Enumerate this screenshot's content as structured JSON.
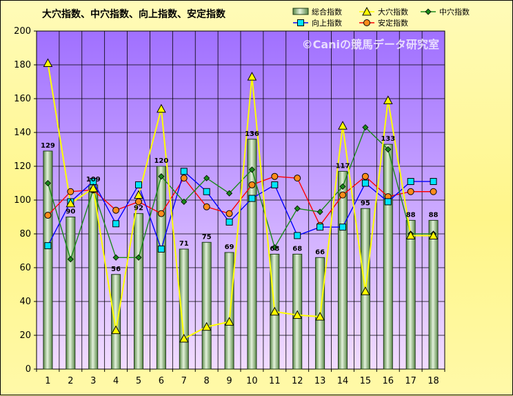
{
  "colors": {
    "plot_top": "#a070ff",
    "plot_bottom": "#f2dcff",
    "bar_fill_dark": "#5c8a4a",
    "bar_fill_light": "#e4f2dc",
    "daiana": "#ffff00",
    "chuana": "#1a8a1a",
    "kojo": "#0000ff",
    "antei": "#ff0000",
    "kojo_marker": "#00e5ff",
    "antei_marker": "#ff8c1a"
  },
  "watermark": "©Caniの競馬データ研究室",
  "chart_data": {
    "type": "bar",
    "title": "大穴指数、中穴指数、向上指数、安定指数",
    "categories": [
      "1",
      "2",
      "3",
      "4",
      "5",
      "6",
      "7",
      "8",
      "9",
      "10",
      "11",
      "12",
      "13",
      "14",
      "15",
      "16",
      "17",
      "18"
    ],
    "ylim": [
      0,
      200
    ],
    "yticks": [
      0,
      20,
      40,
      60,
      80,
      100,
      120,
      140,
      160,
      180,
      200
    ],
    "grid": true,
    "legend_position": "top-right",
    "series": [
      {
        "name": "総合指数",
        "kind": "bar",
        "values": [
          129,
          90,
          109,
          56,
          92,
          120,
          71,
          75,
          69,
          136,
          68,
          68,
          66,
          117,
          95,
          133,
          88,
          88
        ]
      },
      {
        "name": "大穴指数",
        "kind": "line",
        "marker": "triangle",
        "values": [
          181,
          98,
          107,
          23,
          103,
          154,
          18,
          25,
          28,
          173,
          34,
          32,
          31,
          144,
          46,
          159,
          79,
          79
        ]
      },
      {
        "name": "中穴指数",
        "kind": "line",
        "marker": "diamond",
        "values": [
          110,
          65,
          106,
          66,
          66,
          114,
          99,
          113,
          104,
          118,
          72,
          95,
          93,
          108,
          143,
          130,
          80,
          80
        ]
      },
      {
        "name": "向上指数",
        "kind": "line",
        "marker": "square",
        "values": [
          73,
          99,
          111,
          86,
          109,
          71,
          117,
          105,
          87,
          101,
          109,
          79,
          84,
          84,
          110,
          99,
          111,
          111
        ]
      },
      {
        "name": "安定指数",
        "kind": "line",
        "marker": "circle",
        "values": [
          91,
          105,
          106,
          94,
          99,
          92,
          113,
          96,
          92,
          109,
          114,
          113,
          85,
          103,
          114,
          102,
          105,
          105
        ]
      }
    ]
  }
}
